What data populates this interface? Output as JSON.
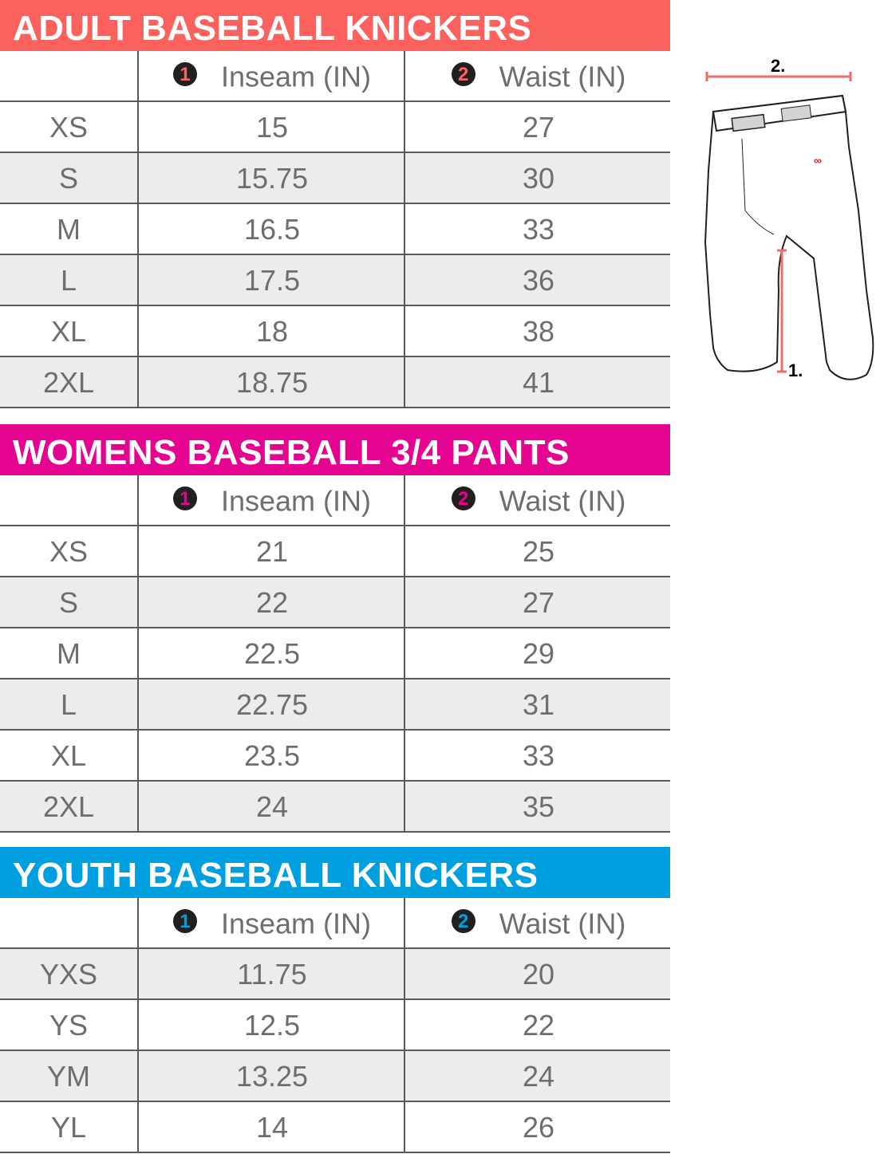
{
  "sections": [
    {
      "title": "ADULT BASEBALL KNICKERS",
      "columns": [
        {
          "number": "1",
          "label": "Inseam (IN)"
        },
        {
          "number": "2",
          "label": "Waist (IN)"
        }
      ],
      "rows": [
        [
          "XS",
          "15",
          "27"
        ],
        [
          "S",
          "15.75",
          "30"
        ],
        [
          "M",
          "16.5",
          "33"
        ],
        [
          "L",
          "17.5",
          "36"
        ],
        [
          "XL",
          "18",
          "38"
        ],
        [
          "2XL",
          "18.75",
          "41"
        ]
      ]
    },
    {
      "title": "WOMENS BASEBALL 3/4 PANTS",
      "columns": [
        {
          "number": "1",
          "label": "Inseam (IN)"
        },
        {
          "number": "2",
          "label": "Waist (IN)"
        }
      ],
      "rows": [
        [
          "XS",
          "21",
          "25"
        ],
        [
          "S",
          "22",
          "27"
        ],
        [
          "M",
          "22.5",
          "29"
        ],
        [
          "L",
          "22.75",
          "31"
        ],
        [
          "XL",
          "23.5",
          "33"
        ],
        [
          "2XL",
          "24",
          "35"
        ]
      ]
    },
    {
      "title": "YOUTH BASEBALL KNICKERS",
      "columns": [
        {
          "number": "1",
          "label": "Inseam (IN)"
        },
        {
          "number": "2",
          "label": "Waist (IN)"
        }
      ],
      "rows": [
        [
          "YXS",
          "11.75",
          "20"
        ],
        [
          "YS",
          "12.5",
          "22"
        ],
        [
          "YM",
          "13.25",
          "24"
        ],
        [
          "YL",
          "14",
          "26"
        ]
      ]
    }
  ],
  "diagram": {
    "waist_label": "2.",
    "inseam_label": "1."
  }
}
